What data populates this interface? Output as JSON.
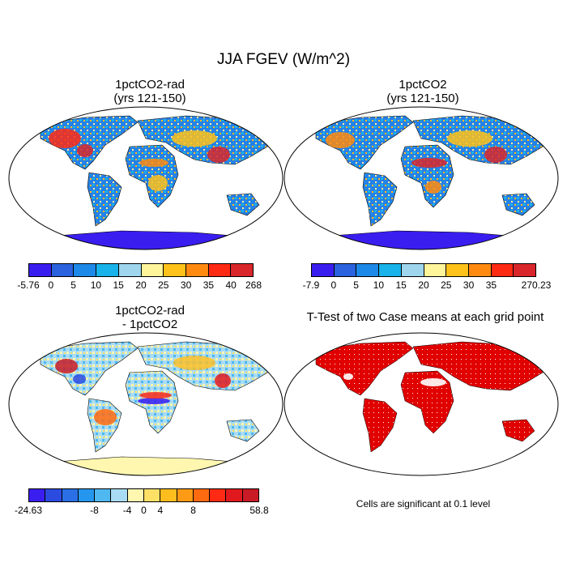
{
  "figure": {
    "title": "JJA FGEV (W/m^2)",
    "panels": [
      {
        "title": "1pctCO2-rad\n(yrs 121-150)"
      },
      {
        "title": "1pctCO2\n(yrs 121-150)"
      },
      {
        "title": "1pctCO2-rad\n- 1pctCO2"
      },
      {
        "title": "T-Test of two Case means at each grid point"
      }
    ],
    "colorbars": [
      {
        "labels": [
          "-5.76",
          "0",
          "5",
          "10",
          "15",
          "20",
          "25",
          "30",
          "35",
          "40",
          "268"
        ],
        "colors": [
          "#3a1ef0",
          "#2b63de",
          "#1d89e8",
          "#17b3ea",
          "#9fd6ee",
          "#fff59a",
          "#ffc21a",
          "#ff8a0f",
          "#ff2a14",
          "#d9262b"
        ]
      },
      {
        "labels": [
          "-7.9",
          "0",
          "5",
          "10",
          "15",
          "20",
          "25",
          "30",
          "35",
          "270.23"
        ],
        "colors": [
          "#3a1ef0",
          "#2b63de",
          "#1d89e8",
          "#17b3ea",
          "#9fd6ee",
          "#fff59a",
          "#ffc21a",
          "#ff8a0f",
          "#ff2a14",
          "#d9262b"
        ]
      },
      {
        "labels": [
          "-24.63",
          "-8",
          "-4",
          "0",
          "4",
          "8",
          "58.8"
        ],
        "colors": [
          "#3a1ef0",
          "#2b4be0",
          "#2a6fe6",
          "#2596ee",
          "#4fb8f0",
          "#a9dcf4",
          "#fff7b0",
          "#ffe066",
          "#ffbe1e",
          "#ff9a14",
          "#ff6a10",
          "#ff2a14",
          "#e0191e",
          "#c81b26"
        ]
      }
    ],
    "ttest_color": "#e10000",
    "note": "Cells are significant at 0.1 level"
  }
}
